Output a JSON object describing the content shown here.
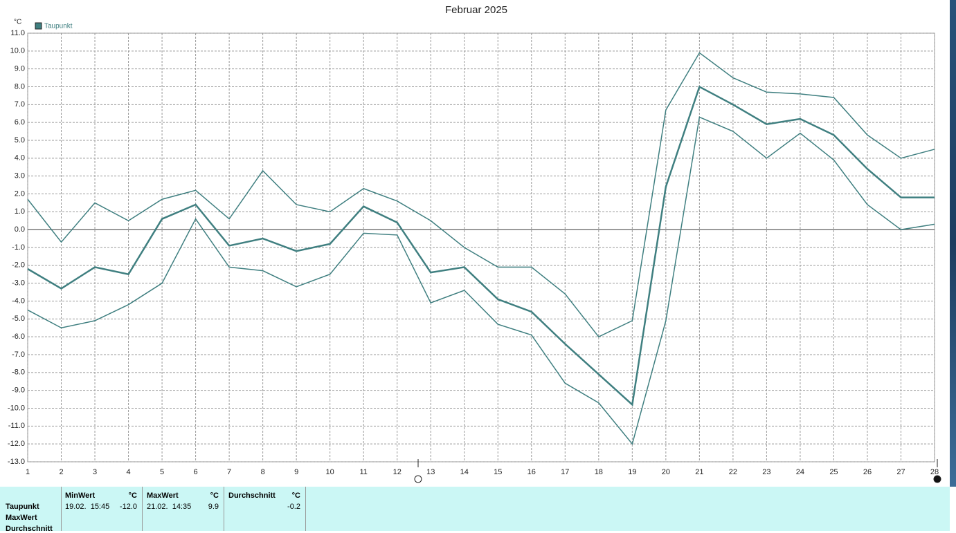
{
  "chart_data": {
    "type": "line",
    "title": "Februar 2025",
    "ylabel": "°C",
    "x": [
      1,
      2,
      3,
      4,
      5,
      6,
      7,
      8,
      9,
      10,
      11,
      12,
      13,
      14,
      15,
      16,
      17,
      18,
      19,
      20,
      21,
      22,
      23,
      24,
      25,
      26,
      27,
      28
    ],
    "xlim": [
      1,
      28
    ],
    "xticks": [
      1,
      2,
      3,
      4,
      5,
      6,
      7,
      8,
      9,
      10,
      11,
      12,
      13,
      14,
      15,
      16,
      17,
      18,
      19,
      20,
      21,
      22,
      23,
      24,
      25,
      26,
      27,
      28
    ],
    "ylim": [
      -13,
      11
    ],
    "yticks": [
      {
        "value": 11,
        "label": "11.0"
      },
      {
        "value": 10,
        "label": "10.0"
      },
      {
        "value": 9,
        "label": "9.0"
      },
      {
        "value": 8,
        "label": "8.0"
      },
      {
        "value": 7,
        "label": "7.0"
      },
      {
        "value": 6,
        "label": "6.0"
      },
      {
        "value": 5,
        "label": "5.0"
      },
      {
        "value": 4,
        "label": "4.0"
      },
      {
        "value": 3,
        "label": "3.0"
      },
      {
        "value": 2,
        "label": "2.0"
      },
      {
        "value": 1,
        "label": "1.0"
      },
      {
        "value": 0,
        "label": "0.0"
      },
      {
        "value": -1,
        "label": "-1.0"
      },
      {
        "value": -2,
        "label": "-2.0"
      },
      {
        "value": -3,
        "label": "-3.0"
      },
      {
        "value": -4,
        "label": "-4.0"
      },
      {
        "value": -5,
        "label": "-5.0"
      },
      {
        "value": -6,
        "label": "-6.0"
      },
      {
        "value": -7,
        "label": "-7.0"
      },
      {
        "value": -8,
        "label": "-8.0"
      },
      {
        "value": -9,
        "label": "-9.0"
      },
      {
        "value": -10,
        "label": "-10.0"
      },
      {
        "value": -11,
        "label": "-11.0"
      },
      {
        "value": -12,
        "label": "-12.0"
      },
      {
        "value": -13,
        "label": "-13.0"
      }
    ],
    "grid": true,
    "series": [
      {
        "color": "#3f7f80",
        "values": [
          1.7,
          -0.7,
          1.5,
          0.5,
          1.7,
          2.2,
          0.6,
          3.3,
          1.4,
          1.0,
          2.3,
          1.6,
          0.5,
          -1.0,
          -2.1,
          -2.1,
          -3.6,
          -6.0,
          -5.1,
          6.7,
          9.9,
          8.5,
          7.7,
          7.6,
          7.4,
          5.3,
          4.0,
          4.5
        ]
      },
      {
        "name": "Taupunkt",
        "color": "#3f7f80",
        "values": [
          -2.2,
          -3.3,
          -2.1,
          -2.5,
          0.6,
          1.4,
          -0.9,
          -0.5,
          -1.2,
          -0.8,
          1.3,
          0.4,
          -2.4,
          -2.1,
          -3.9,
          -4.6,
          -6.4,
          -8.1,
          -9.8,
          2.4,
          8.0,
          7.0,
          5.9,
          6.2,
          5.3,
          3.4,
          1.8,
          1.8
        ]
      },
      {
        "color": "#3f7f80",
        "values": [
          -4.5,
          -5.5,
          -5.1,
          -4.2,
          -3.0,
          0.6,
          -2.1,
          -2.3,
          -3.2,
          -2.5,
          -0.2,
          -0.3,
          -4.1,
          -3.4,
          -5.3,
          -5.9,
          -8.6,
          -9.7,
          -12.0,
          -5.1,
          6.3,
          5.5,
          4.0,
          5.4,
          3.9,
          1.4,
          0.0,
          0.3
        ]
      }
    ]
  },
  "table": {
    "row_labels": [
      "Taupunkt",
      "MaxWert",
      "Durchschnitt"
    ],
    "columns": [
      {
        "header": "MinWert",
        "unit": "°C",
        "time": "19.02.  15:45",
        "value": "-12.0"
      },
      {
        "header": "MaxWert",
        "unit": "°C",
        "time": "21.02.  14:35",
        "value": "9.9"
      },
      {
        "header": "Durchschnitt",
        "unit": "°C",
        "value": "-0.2"
      }
    ]
  }
}
